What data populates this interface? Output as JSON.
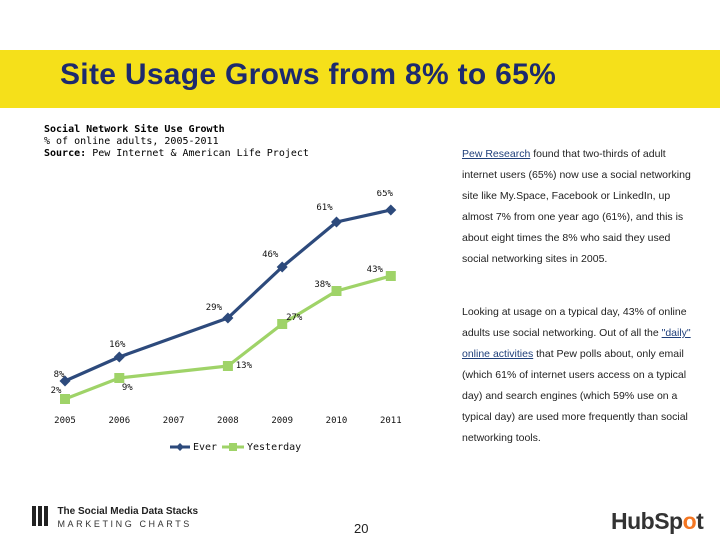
{
  "header": {
    "title": "Site Usage Grows from 8% to 65%",
    "subtitle_line1": "Social Network Site Use Growth",
    "subtitle_line2": "% of online adults, 2005-2011",
    "source_label": "Source:",
    "source_text": "Pew Internet & American Life Project"
  },
  "chart_data": {
    "type": "line",
    "categories": [
      "2005",
      "2006",
      "2007",
      "2008",
      "2009",
      "2010",
      "2011"
    ],
    "series": [
      {
        "name": "Ever",
        "color": "#2d4a7c",
        "x": [
          "2005",
          "2006",
          "2008",
          "2009",
          "2010",
          "2011"
        ],
        "values": [
          8,
          16,
          29,
          46,
          61,
          65
        ],
        "labels": [
          "8%",
          "16%",
          "29%",
          "46%",
          "61%",
          "65%"
        ]
      },
      {
        "name": "Yesterday",
        "color": "#9fd368",
        "x": [
          "2005",
          "2006",
          "2008",
          "2009",
          "2010",
          "2011"
        ],
        "values": [
          2,
          9,
          13,
          27,
          38,
          43
        ],
        "labels": [
          "2%",
          "9%",
          "13%",
          "27%",
          "38%",
          "43%"
        ]
      }
    ],
    "ylim": [
      0,
      70
    ],
    "grid": false,
    "legend": "bottom"
  },
  "notes": {
    "p1_link": "Pew Research",
    "p1_text": " found that two-thirds of adult internet users (65%) now use a social networking site like My.Space, Facebook or LinkedIn, up almost 7% from one year ago (61%), and this is about eight times the 8% who said they used social networking sites in 2005.",
    "p2_a": "Looking at usage on a typical day, 43% of online adults use social networking. Out of all the ",
    "p2_link": "\"daily\" online activities",
    "p2_b": " that Pew polls about, only email (which 61% of internet users access on a typical day) and search engines (which 59% use on a typical day) are used more frequently than social networking tools."
  },
  "footer": {
    "logo_line1": "The Social Media Data Stacks",
    "logo_line2": "MARKETING CHARTS",
    "page_number": "20",
    "hubspot_pre": "HubSp",
    "hubspot_o": "o",
    "hubspot_post": "t"
  },
  "colors": {
    "title_bar": "#f5e01a",
    "title_text": "#1c2a6e",
    "hubspot_accent": "#f47622"
  }
}
